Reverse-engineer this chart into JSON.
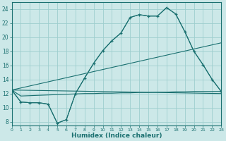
{
  "xlabel": "Humidex (Indice chaleur)",
  "bg_color": "#cce8e8",
  "grid_color": "#9ecece",
  "line_color": "#1a7070",
  "xlim": [
    0,
    23
  ],
  "ylim": [
    7.5,
    25.0
  ],
  "xticks": [
    0,
    1,
    2,
    3,
    4,
    5,
    6,
    7,
    8,
    9,
    10,
    11,
    12,
    13,
    14,
    15,
    16,
    17,
    18,
    19,
    20,
    21,
    22,
    23
  ],
  "yticks": [
    8,
    10,
    12,
    14,
    16,
    18,
    20,
    22,
    24
  ],
  "main_line": [
    [
      0,
      12.5
    ],
    [
      1,
      10.8
    ],
    [
      2,
      10.7
    ],
    [
      3,
      10.7
    ],
    [
      4,
      10.5
    ],
    [
      5,
      7.8
    ],
    [
      6,
      8.3
    ],
    [
      7,
      12.0
    ],
    [
      8,
      14.2
    ],
    [
      9,
      16.3
    ],
    [
      10,
      18.1
    ],
    [
      11,
      19.5
    ],
    [
      12,
      20.6
    ],
    [
      13,
      22.8
    ],
    [
      14,
      23.2
    ],
    [
      15,
      23.0
    ],
    [
      16,
      23.0
    ],
    [
      17,
      24.2
    ],
    [
      18,
      23.3
    ],
    [
      19,
      20.8
    ],
    [
      20,
      18.0
    ],
    [
      21,
      16.1
    ],
    [
      22,
      14.0
    ],
    [
      23,
      12.3
    ]
  ],
  "straight_line1": [
    [
      0,
      12.5
    ],
    [
      23,
      12.0
    ]
  ],
  "straight_line2": [
    [
      0,
      12.5
    ],
    [
      23,
      19.2
    ]
  ],
  "envelope": [
    [
      0,
      12.5
    ],
    [
      1,
      10.8
    ],
    [
      2,
      10.7
    ],
    [
      3,
      10.7
    ],
    [
      4,
      10.5
    ],
    [
      5,
      7.8
    ],
    [
      6,
      8.3
    ],
    [
      7,
      12.0
    ],
    [
      8,
      14.2
    ],
    [
      9,
      16.3
    ],
    [
      10,
      18.1
    ],
    [
      11,
      19.5
    ],
    [
      12,
      20.6
    ],
    [
      13,
      22.8
    ],
    [
      14,
      23.2
    ],
    [
      15,
      23.0
    ],
    [
      16,
      23.0
    ],
    [
      17,
      24.2
    ],
    [
      18,
      23.3
    ],
    [
      19,
      20.8
    ],
    [
      20,
      18.0
    ],
    [
      21,
      16.1
    ],
    [
      22,
      14.0
    ],
    [
      23,
      12.3
    ],
    [
      23,
      12.3
    ],
    [
      22,
      12.3
    ],
    [
      21,
      12.3
    ],
    [
      20,
      12.3
    ],
    [
      19,
      12.25
    ],
    [
      18,
      12.25
    ],
    [
      17,
      12.2
    ],
    [
      16,
      12.2
    ],
    [
      15,
      12.15
    ],
    [
      14,
      12.15
    ],
    [
      13,
      12.1
    ],
    [
      12,
      12.1
    ],
    [
      11,
      12.05
    ],
    [
      10,
      12.05
    ],
    [
      9,
      12.0
    ],
    [
      8,
      12.0
    ],
    [
      7,
      11.95
    ],
    [
      6,
      11.9
    ],
    [
      5,
      11.85
    ],
    [
      4,
      11.8
    ],
    [
      3,
      11.75
    ],
    [
      2,
      11.7
    ],
    [
      1,
      11.65
    ],
    [
      0,
      12.5
    ]
  ]
}
